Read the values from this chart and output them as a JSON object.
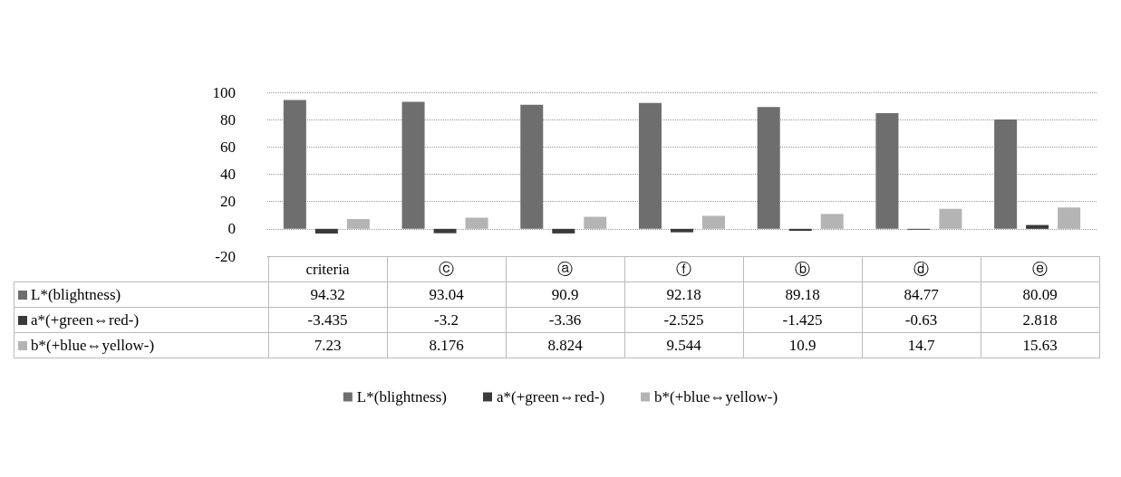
{
  "chart_data": {
    "type": "bar",
    "categories": [
      "criteria",
      "ⓒ",
      "ⓐ",
      "ⓕ",
      "ⓑ",
      "ⓓ",
      "ⓔ"
    ],
    "series": [
      {
        "name": "L*(blightness)",
        "color": "#6e6e6e",
        "values": [
          94.32,
          93.04,
          90.9,
          92.18,
          89.18,
          84.77,
          80.09
        ]
      },
      {
        "name": "a*(+green⇔red-)",
        "color": "#3a3a3a",
        "values": [
          -3.435,
          -3.2,
          -3.36,
          -2.525,
          -1.425,
          -0.63,
          2.818
        ]
      },
      {
        "name": "b*(+blue⇔yellow-)",
        "color": "#b4b4b4",
        "values": [
          7.23,
          8.176,
          8.824,
          9.544,
          10.9,
          14.7,
          15.63
        ]
      }
    ],
    "ylim": [
      -20,
      100
    ],
    "yticks": [
      -20,
      0,
      20,
      40,
      60,
      80,
      100
    ],
    "grid": "y",
    "legend": "bottom",
    "data_labels": true
  }
}
